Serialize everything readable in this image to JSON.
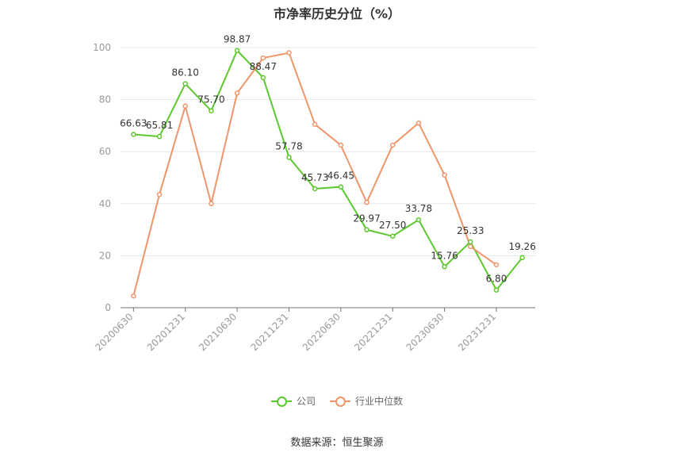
{
  "title": "市净率历史分位（%）",
  "source": "数据来源：恒生聚源",
  "colors": {
    "company": "#5cc82d",
    "industry": "#f0956a",
    "grid": "#e6e6e6",
    "axis": "#999999"
  },
  "legend": {
    "company": "公司",
    "industry": "行业中位数"
  },
  "chart_data": {
    "type": "line",
    "title": "市净率历史分位（%）",
    "x": [
      "20200630",
      "20200930",
      "20201231",
      "20210331",
      "20210630",
      "20210930",
      "20211231",
      "20220331",
      "20220630",
      "20220930",
      "20221231",
      "20230331",
      "20230630",
      "20230930",
      "20231231",
      "20240331"
    ],
    "x_tick_labels": [
      "20200630",
      "20201231",
      "20210630",
      "20211231",
      "20220630",
      "20221231",
      "20230630",
      "20231231"
    ],
    "ylim": [
      0,
      100
    ],
    "y_ticks": [
      0,
      20,
      40,
      60,
      80,
      100
    ],
    "grid": true,
    "legend_position": "bottom",
    "series": [
      {
        "name": "公司",
        "values": [
          66.63,
          65.81,
          86.1,
          75.7,
          98.87,
          88.47,
          57.78,
          45.73,
          46.45,
          29.97,
          27.5,
          33.78,
          15.76,
          25.33,
          6.8,
          19.26
        ],
        "labels": [
          "66.63",
          "65.81",
          "86.10",
          "75.70",
          "98.87",
          "88.47",
          "57.78",
          "45.73",
          "46.45",
          "29.97",
          "27.50",
          "33.78",
          "15.76",
          "25.33",
          "6.80",
          "19.26"
        ]
      },
      {
        "name": "行业中位数",
        "values": [
          4.5,
          43.5,
          77.5,
          40.0,
          82.5,
          96.0,
          98.0,
          70.5,
          62.5,
          40.5,
          62.5,
          71.0,
          51.0,
          23.5,
          16.5,
          null
        ]
      }
    ]
  }
}
